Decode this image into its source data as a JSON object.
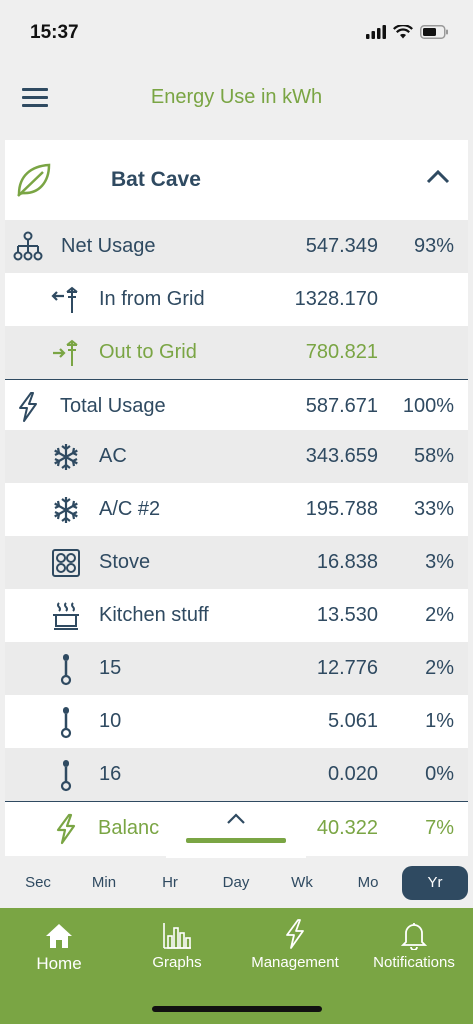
{
  "status": {
    "time": "15:37"
  },
  "header": {
    "title": "Energy Use in kWh"
  },
  "site": {
    "name": "Bat Cave"
  },
  "rows": [
    {
      "label": "Net Usage",
      "value": "547.349",
      "pct": "93%"
    },
    {
      "label": "In from Grid",
      "value": "1328.170",
      "pct": ""
    },
    {
      "label": "Out to Grid",
      "value": "780.821",
      "pct": ""
    },
    {
      "label": "Total Usage",
      "value": "587.671",
      "pct": "100%"
    },
    {
      "label": "AC",
      "value": "343.659",
      "pct": "58%"
    },
    {
      "label": "A/C #2",
      "value": "195.788",
      "pct": "33%"
    },
    {
      "label": "Stove",
      "value": "16.838",
      "pct": "3%"
    },
    {
      "label": "Kitchen stuff",
      "value": "13.530",
      "pct": "2%"
    },
    {
      "label": "15",
      "value": "12.776",
      "pct": "2%"
    },
    {
      "label": "10",
      "value": "5.061",
      "pct": "1%"
    },
    {
      "label": "16",
      "value": "0.020",
      "pct": "0%"
    },
    {
      "label": "Balanc",
      "value": "40.322",
      "pct": "7%"
    }
  ],
  "ranges": [
    "Sec",
    "Min",
    "Hr",
    "Day",
    "Wk",
    "Mo",
    "Yr"
  ],
  "active_range": "Yr",
  "tabs": [
    {
      "label": "Home",
      "icon": "home-icon"
    },
    {
      "label": "Graphs",
      "icon": "bar-chart-icon"
    },
    {
      "label": "Management",
      "icon": "lightning-icon"
    },
    {
      "label": "Notifications",
      "icon": "bell-icon"
    }
  ],
  "colors": {
    "accent": "#7aa544",
    "primary": "#2f4a61",
    "row_alt": "#ebebeb"
  }
}
